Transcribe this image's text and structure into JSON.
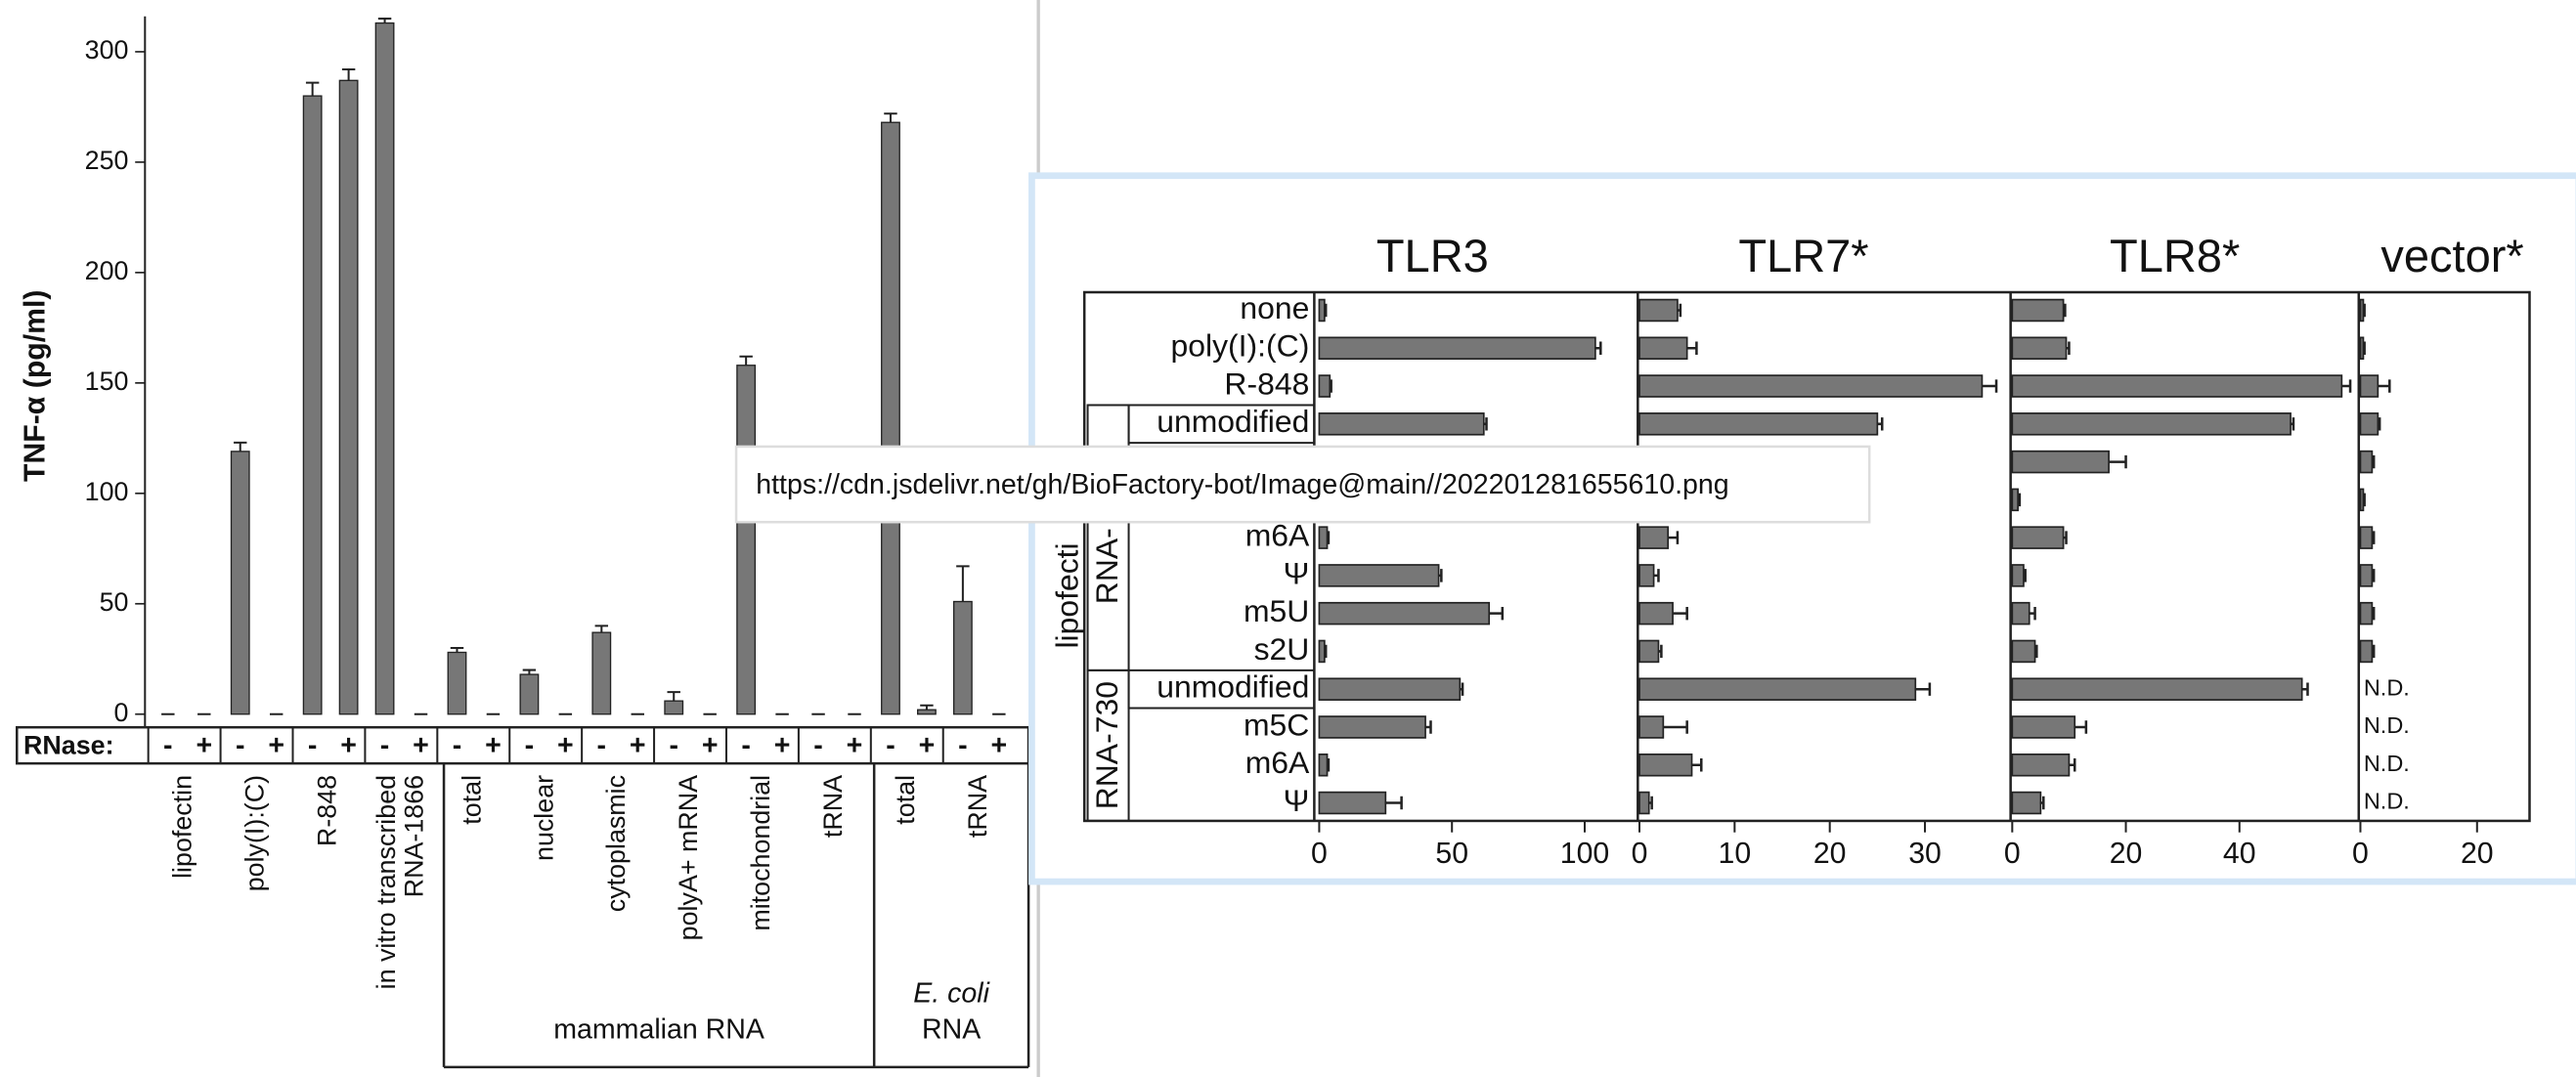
{
  "tooltip": "https://cdn.jsdelivr.net/gh/BioFactory-bot/Image@main//202201281655610.png",
  "chart_data": [
    {
      "type": "bar",
      "y_label": "TNF-α (pg/ml)",
      "rnase_label": "RNase:",
      "categories": [
        "lipofectin",
        "poly(I):(C)",
        "R-848",
        [
          "in vitro transcribed",
          "RNA-1866"
        ],
        "total",
        "nuclear",
        "cytoplasmic",
        "polyA+ mRNA",
        "mitochondrial",
        "tRNA",
        "total",
        "tRNA"
      ],
      "group_labels": [
        "mammalian RNA",
        [
          "E. coli",
          "RNA"
        ]
      ],
      "series": [
        {
          "name": "-",
          "color": "#777777",
          "values": [
            0,
            119,
            280,
            313,
            28,
            18,
            37,
            6,
            158,
            0,
            268,
            51
          ],
          "errors": [
            0,
            4,
            6,
            2,
            2,
            2,
            3,
            4,
            4,
            0,
            4,
            16
          ]
        },
        {
          "name": "+",
          "color": "#777777",
          "values": [
            0,
            0,
            287,
            0,
            0,
            0,
            0,
            0,
            0,
            0,
            2,
            0
          ],
          "errors": [
            0,
            0,
            5,
            0,
            0,
            0,
            0,
            0,
            0,
            0,
            2,
            0
          ]
        }
      ],
      "ylim": [
        0,
        316
      ],
      "yticks": [
        0,
        50,
        100,
        150,
        200,
        250,
        300
      ]
    },
    {
      "type": "hbar_panels",
      "color": "#777777",
      "categories": [
        "none",
        "poly(I):(C)",
        "R-848",
        "unmodified",
        null,
        null,
        "m6A",
        "Ψ",
        "m5U",
        "s2U",
        "unmodified",
        "m5C",
        "m6A",
        "Ψ"
      ],
      "group_labels": [
        "lipofecti",
        "RNA-",
        "RNA-730"
      ],
      "panels": [
        {
          "title": "TLR3",
          "xlim": [
            0,
            120
          ],
          "xticks": [
            0,
            50,
            100
          ],
          "values": [
            2,
            104,
            4,
            62,
            null,
            null,
            3,
            45,
            64,
            2,
            53,
            40,
            3,
            25
          ],
          "errors": [
            0.5,
            2,
            0.5,
            1,
            null,
            null,
            0.5,
            1,
            5,
            0.5,
            1,
            2,
            0.5,
            6
          ]
        },
        {
          "title": "TLR7*",
          "xlim": [
            0,
            39
          ],
          "xticks": [
            0,
            10,
            20,
            30
          ],
          "values": [
            4,
            5,
            36,
            25,
            null,
            null,
            3,
            1.5,
            3.5,
            2,
            29,
            2.5,
            5.5,
            1
          ],
          "errors": [
            0.3,
            1,
            1.5,
            0.5,
            null,
            null,
            1,
            0.5,
            1.5,
            0.3,
            1.5,
            2.5,
            1,
            0.3
          ]
        },
        {
          "title": "TLR8*",
          "xlim": [
            0,
            61
          ],
          "xticks": [
            0,
            20,
            40
          ],
          "values": [
            9,
            9.5,
            58,
            49,
            17,
            1,
            9,
            2,
            3,
            4,
            51,
            11,
            10,
            5
          ],
          "errors": [
            0.3,
            0.5,
            1.5,
            0.5,
            3,
            0.3,
            0.5,
            0.3,
            1,
            0.3,
            1,
            2,
            1,
            0.5
          ]
        },
        {
          "title": "vector*",
          "xlim": [
            0,
            29
          ],
          "xticks": [
            0,
            20
          ],
          "values": [
            0.5,
            0.5,
            3,
            3,
            2,
            0.5,
            2,
            2,
            2,
            2,
            null,
            null,
            null,
            null
          ],
          "errors": [
            0.2,
            0.2,
            2,
            0.3,
            0.3,
            0.2,
            0.3,
            0.3,
            0.3,
            0.3,
            null,
            null,
            null,
            null
          ],
          "value_labels": [
            null,
            null,
            null,
            null,
            null,
            null,
            null,
            null,
            null,
            null,
            "N.D.",
            "N.D.",
            "N.D.",
            "N.D."
          ]
        }
      ]
    }
  ]
}
